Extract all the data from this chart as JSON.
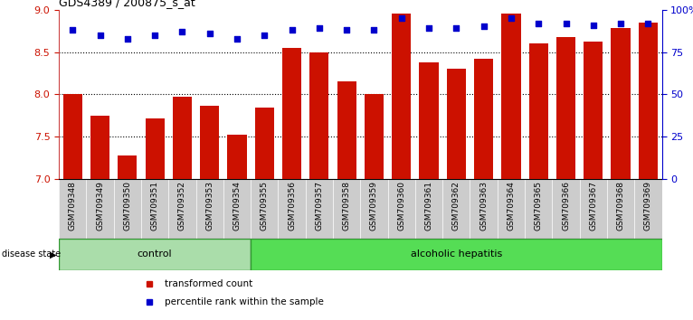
{
  "title": "GDS4389 / 200875_s_at",
  "samples": [
    "GSM709348",
    "GSM709349",
    "GSM709350",
    "GSM709351",
    "GSM709352",
    "GSM709353",
    "GSM709354",
    "GSM709355",
    "GSM709356",
    "GSM709357",
    "GSM709358",
    "GSM709359",
    "GSM709360",
    "GSM709361",
    "GSM709362",
    "GSM709363",
    "GSM709364",
    "GSM709365",
    "GSM709366",
    "GSM709367",
    "GSM709368",
    "GSM709369"
  ],
  "bar_values": [
    8.0,
    7.75,
    7.28,
    7.72,
    7.97,
    7.87,
    7.52,
    7.85,
    8.55,
    8.5,
    8.15,
    8.0,
    8.95,
    8.38,
    8.3,
    8.42,
    8.95,
    8.6,
    8.68,
    8.62,
    8.78,
    8.85
  ],
  "percentile_values": [
    88,
    85,
    83,
    85,
    87,
    86,
    83,
    85,
    88,
    89,
    88,
    88,
    95,
    89,
    89,
    90,
    95,
    92,
    92,
    91,
    92,
    92
  ],
  "bar_color": "#cc1100",
  "percentile_color": "#0000cc",
  "ylim_left": [
    7.0,
    9.0
  ],
  "ylim_right": [
    0,
    100
  ],
  "yticks_left": [
    7.0,
    7.5,
    8.0,
    8.5,
    9.0
  ],
  "yticks_right": [
    0,
    25,
    50,
    75,
    100
  ],
  "ytick_labels_right": [
    "0",
    "25",
    "50",
    "75",
    "100%"
  ],
  "dotted_lines": [
    7.5,
    8.0,
    8.5
  ],
  "control_count": 7,
  "control_color": "#aaddaa",
  "hepatitis_color": "#55dd55",
  "disease_state_label": "disease state",
  "legend_bar_label": "transformed count",
  "legend_pct_label": "percentile rank within the sample",
  "bar_width": 0.7,
  "xtick_bg_color": "#cccccc",
  "xtick_label_fontsize": 6.5,
  "bar_color_left_spine": "#cc4444"
}
